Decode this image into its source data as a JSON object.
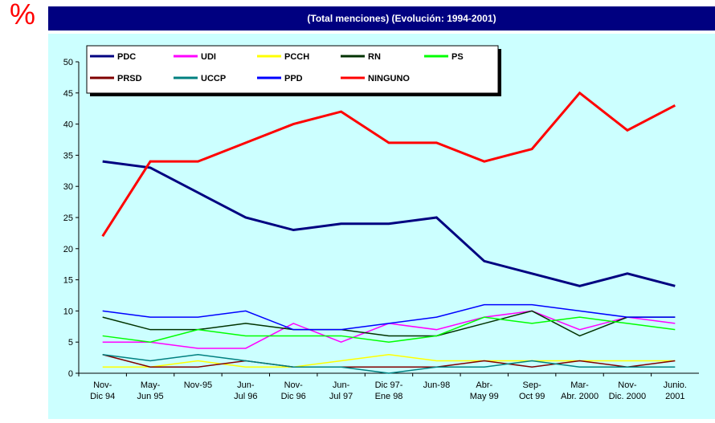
{
  "chart_data": {
    "type": "line",
    "symbol": "%",
    "title": "(Total menciones) (Evolución: 1994-2001)",
    "categories": [
      "Nov-\nDic 94",
      "May-\nJun 95",
      "Nov-95",
      "Jun-\nJul 96",
      "Nov-\nDic 96",
      "Jun-\nJul 97",
      "Dic 97-\nEne 98",
      "Jun-98",
      "Abr-\nMay 99",
      "Sep-\nOct 99",
      "Mar-\nAbr. 2000",
      "Nov-\nDic. 2000",
      "Junio.\n2001"
    ],
    "ylim": [
      0,
      50
    ],
    "yticks": [
      0,
      5,
      10,
      15,
      20,
      25,
      30,
      35,
      40,
      45,
      50
    ],
    "series": [
      {
        "name": "PDC",
        "color": "#000080",
        "values": [
          34,
          33,
          29,
          25,
          23,
          24,
          24,
          25,
          18,
          16,
          14,
          16,
          14
        ]
      },
      {
        "name": "UDI",
        "color": "#ff00ff",
        "values": [
          5,
          5,
          4,
          4,
          8,
          5,
          8,
          7,
          9,
          10,
          7,
          9,
          8
        ]
      },
      {
        "name": "PCCH",
        "color": "#ffff00",
        "values": [
          1,
          1,
          2,
          1,
          1,
          2,
          3,
          2,
          2,
          2,
          2,
          2,
          2
        ]
      },
      {
        "name": "RN",
        "color": "#003300",
        "values": [
          9,
          7,
          7,
          8,
          7,
          7,
          6,
          6,
          8,
          10,
          6,
          9,
          9
        ]
      },
      {
        "name": "PS",
        "color": "#00ff00",
        "values": [
          6,
          5,
          7,
          6,
          6,
          6,
          5,
          6,
          9,
          8,
          9,
          8,
          7
        ]
      },
      {
        "name": "PRSD",
        "color": "#800000",
        "values": [
          3,
          1,
          1,
          2,
          1,
          1,
          1,
          1,
          2,
          1,
          2,
          1,
          2
        ]
      },
      {
        "name": "UCCP",
        "color": "#008080",
        "values": [
          3,
          2,
          3,
          2,
          1,
          1,
          0,
          1,
          1,
          2,
          1,
          1,
          1
        ]
      },
      {
        "name": "PPD",
        "color": "#0000ff",
        "values": [
          10,
          9,
          9,
          10,
          7,
          7,
          8,
          9,
          11,
          11,
          10,
          9,
          9
        ]
      },
      {
        "name": "NINGUNO",
        "color": "#ff0000",
        "values": [
          22,
          34,
          34,
          37,
          40,
          42,
          37,
          37,
          34,
          36,
          45,
          39,
          43
        ]
      }
    ]
  }
}
